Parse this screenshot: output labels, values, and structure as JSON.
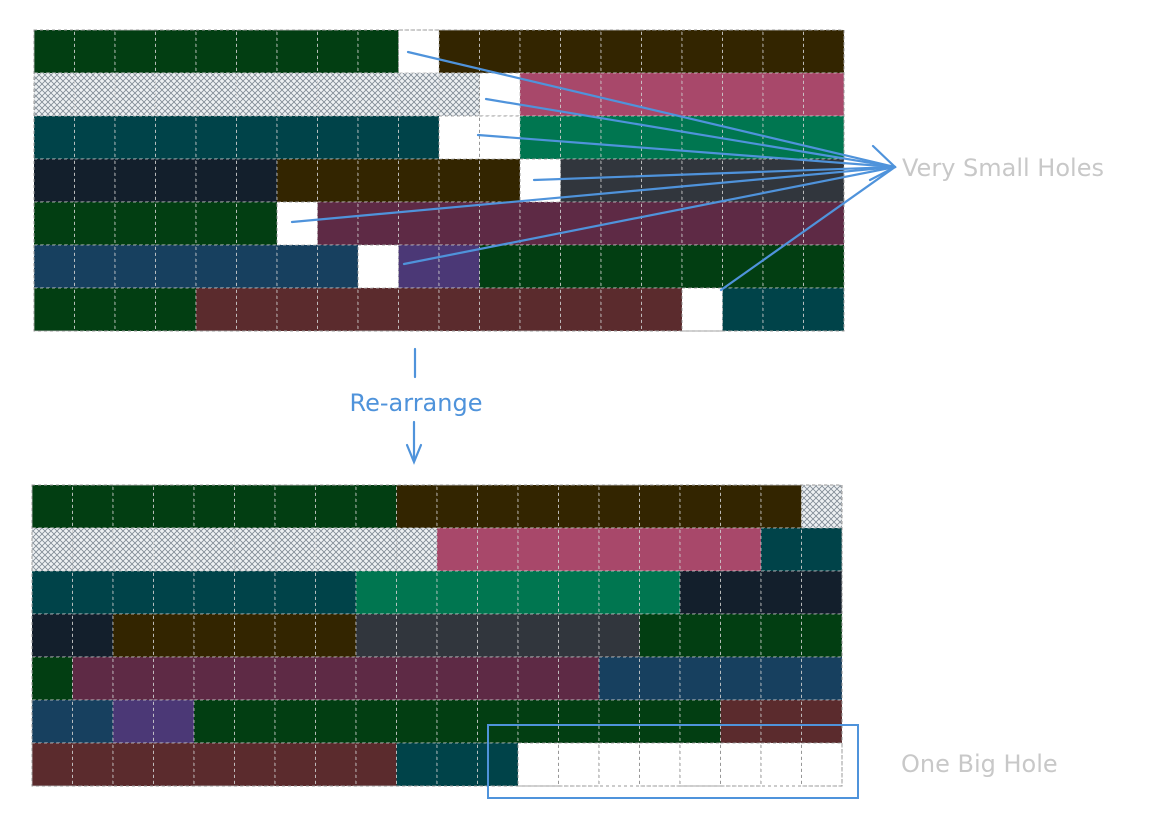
{
  "labels": {
    "small_holes": "Very Small Holes",
    "rearrange": "Re-arrange",
    "big_hole": "One Big Hole"
  },
  "colors": {
    "green": "#023e12",
    "brown": "#332500",
    "hatch": "#aeb6bd",
    "pink": "#a8486a",
    "teal": "#004349",
    "emerald": "#007650",
    "navy": "#131f2c",
    "slate": "#31363d",
    "plum": "#5e2a45",
    "blue": "#17405f",
    "purple": "#4b3876",
    "maroon": "#5b2b2d",
    "hole": "#ffffff",
    "accent": "#4f93db",
    "muted_text": "#c8c8c8"
  },
  "grid": {
    "columns": 20,
    "rows": 7
  },
  "before_rows": [
    [
      [
        "green",
        9
      ],
      [
        "hole",
        1
      ],
      [
        "brown",
        10
      ]
    ],
    [
      [
        "hatch",
        11
      ],
      [
        "hole",
        1
      ],
      [
        "pink",
        8
      ]
    ],
    [
      [
        "teal",
        10
      ],
      [
        "hole",
        2
      ],
      [
        "emerald",
        8
      ]
    ],
    [
      [
        "navy",
        6
      ],
      [
        "brown",
        6
      ],
      [
        "hole",
        1
      ],
      [
        "slate",
        7
      ]
    ],
    [
      [
        "green",
        6
      ],
      [
        "hole",
        1
      ],
      [
        "plum",
        13
      ]
    ],
    [
      [
        "blue",
        8
      ],
      [
        "hole",
        1
      ],
      [
        "purple",
        2
      ],
      [
        "green",
        9
      ]
    ],
    [
      [
        "green",
        4
      ],
      [
        "maroon",
        12
      ],
      [
        "hole",
        1
      ],
      [
        "teal",
        3
      ]
    ]
  ],
  "after_rows": [
    [
      [
        "green",
        9
      ],
      [
        "brown",
        10
      ],
      [
        "hatch",
        1
      ]
    ],
    [
      [
        "hatch",
        10
      ],
      [
        "pink",
        8
      ],
      [
        "teal",
        2
      ]
    ],
    [
      [
        "teal",
        8
      ],
      [
        "emerald",
        8
      ],
      [
        "navy",
        4
      ]
    ],
    [
      [
        "navy",
        2
      ],
      [
        "brown",
        6
      ],
      [
        "slate",
        7
      ],
      [
        "green",
        5
      ]
    ],
    [
      [
        "green",
        1
      ],
      [
        "plum",
        13
      ],
      [
        "blue",
        6
      ]
    ],
    [
      [
        "blue",
        2
      ],
      [
        "purple",
        2
      ],
      [
        "green",
        13
      ],
      [
        "maroon",
        3
      ]
    ],
    [
      [
        "maroon",
        9
      ],
      [
        "teal",
        3
      ],
      [
        "hole",
        8
      ]
    ]
  ]
}
